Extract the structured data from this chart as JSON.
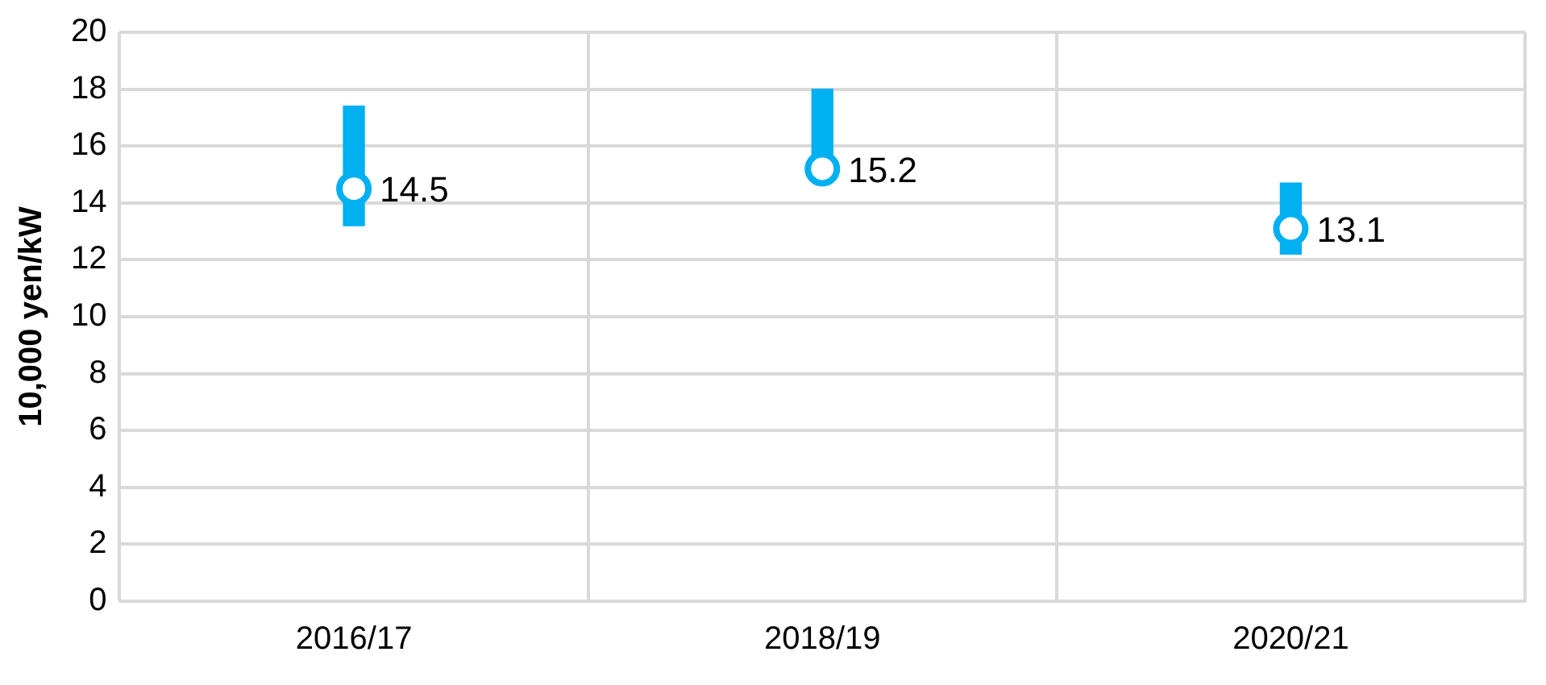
{
  "chart_data": {
    "type": "bar",
    "ylabel": "10,000 yen/kW",
    "categories": [
      "2016/17",
      "2018/19",
      "2020/21"
    ],
    "ylim": [
      0,
      20
    ],
    "yticks": [
      0,
      2,
      4,
      6,
      8,
      10,
      12,
      14,
      16,
      18,
      20
    ],
    "grid": true,
    "legend": false,
    "marker": "circle",
    "series": [
      {
        "color": "#00b0f0",
        "base": [
          13.2,
          15.2,
          12.2
        ],
        "values": [
          4.2,
          2.8,
          2.5
        ]
      },
      {
        "type": "scatter",
        "color": "#00b0f0",
        "x": [
          "2016/17",
          "2018/19",
          "2020/21"
        ],
        "values": [
          14.5,
          15.2,
          13.1
        ],
        "value_labels": [
          "14.5",
          "15.2",
          "13.1"
        ]
      }
    ]
  }
}
